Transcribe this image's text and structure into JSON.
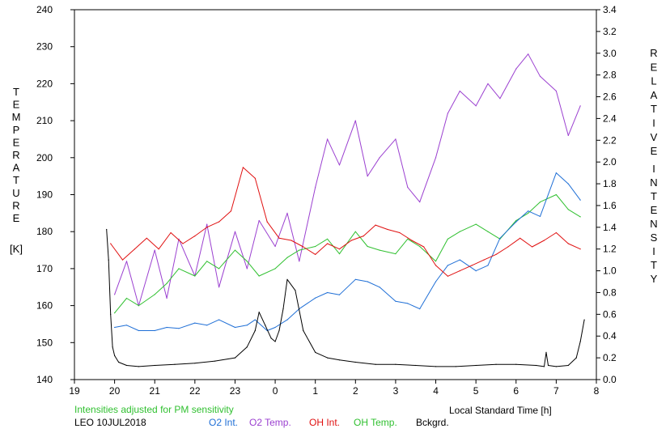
{
  "chart_data": {
    "type": "line",
    "xlabel": "Local Standard Time [h]",
    "x_ticks": [
      "19",
      "20",
      "21",
      "22",
      "23",
      "0",
      "1",
      "2",
      "3",
      "4",
      "5",
      "6",
      "7",
      "8"
    ],
    "xlim": [
      19,
      32
    ],
    "left_axis": {
      "ylabel_letters": [
        "T",
        "E",
        "M",
        "P",
        "E",
        "R",
        "A",
        "T",
        "U",
        "R",
        "E"
      ],
      "unit": "[K]",
      "ylim": [
        140,
        240
      ],
      "ticks": [
        "140",
        "150",
        "160",
        "170",
        "180",
        "190",
        "200",
        "210",
        "220",
        "230",
        "240"
      ]
    },
    "right_axis": {
      "ylabel_words": [
        [
          "R",
          "E",
          "L",
          "A",
          "T",
          "I",
          "V",
          "E"
        ],
        [
          "I",
          "N",
          "T",
          "E",
          "N",
          "S",
          "I",
          "T",
          "Y"
        ]
      ],
      "ylim": [
        0.0,
        3.4
      ],
      "ticks": [
        "0.0",
        "0.2",
        "0.4",
        "0.6",
        "0.8",
        "1.0",
        "1.2",
        "1.4",
        "1.6",
        "1.8",
        "2.0",
        "2.2",
        "2.4",
        "2.6",
        "2.8",
        "3.0",
        "3.2",
        "3.4"
      ]
    },
    "note": "Intensities adjusted for PM sensitivity",
    "station": "LEO 10JUL2018",
    "colors": {
      "o2_int": "#1f6fd6",
      "o2_temp": "#9b40d0",
      "oh_int": "#e01010",
      "oh_temp": "#30c030",
      "bckgrd": "#000000",
      "note": "#30c030"
    },
    "series": [
      {
        "name": "O2 Int.",
        "axis": "right",
        "key": "o2_int",
        "x": [
          20.0,
          20.3,
          20.6,
          21.0,
          21.3,
          21.6,
          22.0,
          22.3,
          22.6,
          23.0,
          23.3,
          23.5,
          23.8,
          24.0,
          24.3,
          24.6,
          25.0,
          25.3,
          25.6,
          26.0,
          26.3,
          26.6,
          27.0,
          27.3,
          27.6,
          28.0,
          28.3,
          28.6,
          29.0,
          29.3,
          29.6,
          30.0,
          30.3,
          30.6,
          31.0,
          31.3,
          31.6
        ],
        "y": [
          0.48,
          0.5,
          0.45,
          0.45,
          0.48,
          0.47,
          0.52,
          0.5,
          0.55,
          0.48,
          0.5,
          0.55,
          0.45,
          0.48,
          0.55,
          0.65,
          0.75,
          0.8,
          0.78,
          0.92,
          0.9,
          0.85,
          0.72,
          0.7,
          0.65,
          0.9,
          1.05,
          1.1,
          1.0,
          1.05,
          1.3,
          1.45,
          1.55,
          1.5,
          1.9,
          1.8,
          1.65
        ]
      },
      {
        "name": "O2 Temp.",
        "axis": "left",
        "key": "o2_temp",
        "x": [
          20.0,
          20.3,
          20.6,
          21.0,
          21.3,
          21.6,
          22.0,
          22.3,
          22.6,
          23.0,
          23.3,
          23.6,
          24.0,
          24.3,
          24.6,
          25.0,
          25.3,
          25.6,
          26.0,
          26.3,
          26.6,
          27.0,
          27.3,
          27.6,
          28.0,
          28.3,
          28.6,
          29.0,
          29.3,
          29.6,
          30.0,
          30.3,
          30.6,
          31.0,
          31.3,
          31.6
        ],
        "y": [
          163,
          172,
          160,
          175,
          162,
          178,
          168,
          182,
          165,
          180,
          170,
          183,
          176,
          185,
          172,
          192,
          205,
          198,
          210,
          195,
          200,
          205,
          192,
          188,
          200,
          212,
          218,
          214,
          220,
          216,
          224,
          228,
          222,
          218,
          206,
          214
        ]
      },
      {
        "name": "OH Int.",
        "axis": "right",
        "key": "oh_int",
        "x": [
          19.9,
          20.2,
          20.5,
          20.8,
          21.1,
          21.4,
          21.7,
          22.0,
          22.3,
          22.6,
          22.9,
          23.2,
          23.5,
          23.8,
          24.1,
          24.4,
          24.7,
          25.0,
          25.3,
          25.6,
          25.9,
          26.2,
          26.5,
          26.8,
          27.1,
          27.4,
          27.7,
          28.0,
          28.3,
          28.6,
          28.9,
          29.2,
          29.5,
          29.8,
          30.1,
          30.4,
          30.7,
          31.0,
          31.3,
          31.6
        ],
        "y": [
          1.25,
          1.1,
          1.2,
          1.3,
          1.2,
          1.35,
          1.25,
          1.32,
          1.4,
          1.45,
          1.55,
          1.95,
          1.85,
          1.45,
          1.3,
          1.28,
          1.22,
          1.15,
          1.25,
          1.2,
          1.28,
          1.32,
          1.42,
          1.38,
          1.35,
          1.28,
          1.22,
          1.05,
          0.95,
          1.0,
          1.05,
          1.1,
          1.15,
          1.22,
          1.3,
          1.22,
          1.28,
          1.35,
          1.25,
          1.2
        ]
      },
      {
        "name": "OH Temp.",
        "axis": "left",
        "key": "oh_temp",
        "x": [
          20.0,
          20.3,
          20.6,
          21.0,
          21.3,
          21.6,
          22.0,
          22.3,
          22.6,
          23.0,
          23.3,
          23.6,
          24.0,
          24.3,
          24.6,
          25.0,
          25.3,
          25.6,
          26.0,
          26.3,
          26.6,
          27.0,
          27.3,
          27.6,
          28.0,
          28.3,
          28.6,
          29.0,
          29.3,
          29.6,
          30.0,
          30.3,
          30.6,
          31.0,
          31.3,
          31.6
        ],
        "y": [
          158,
          162,
          160,
          163,
          166,
          170,
          168,
          172,
          170,
          175,
          172,
          168,
          170,
          173,
          175,
          176,
          178,
          174,
          180,
          176,
          175,
          174,
          178,
          176,
          172,
          178,
          180,
          182,
          180,
          178,
          183,
          185,
          188,
          190,
          186,
          184
        ]
      },
      {
        "name": "Bckgrd.",
        "axis": "right",
        "key": "bckgrd",
        "x": [
          19.8,
          19.85,
          19.9,
          19.95,
          20.0,
          20.1,
          20.3,
          20.6,
          21.0,
          21.5,
          22.0,
          22.5,
          23.0,
          23.3,
          23.5,
          23.6,
          23.75,
          23.9,
          24.0,
          24.1,
          24.2,
          24.3,
          24.5,
          24.7,
          25.0,
          25.3,
          25.6,
          26.0,
          26.5,
          27.0,
          27.5,
          28.0,
          28.5,
          29.0,
          29.5,
          30.0,
          30.5,
          30.7,
          30.75,
          30.8,
          31.0,
          31.3,
          31.5,
          31.6,
          31.7
        ],
        "y": [
          1.38,
          1.1,
          0.6,
          0.3,
          0.22,
          0.16,
          0.13,
          0.12,
          0.13,
          0.14,
          0.15,
          0.17,
          0.2,
          0.3,
          0.45,
          0.62,
          0.5,
          0.38,
          0.35,
          0.45,
          0.65,
          0.92,
          0.82,
          0.45,
          0.25,
          0.2,
          0.18,
          0.16,
          0.14,
          0.14,
          0.13,
          0.12,
          0.12,
          0.13,
          0.14,
          0.14,
          0.13,
          0.12,
          0.25,
          0.13,
          0.12,
          0.13,
          0.2,
          0.35,
          0.55
        ]
      }
    ]
  }
}
